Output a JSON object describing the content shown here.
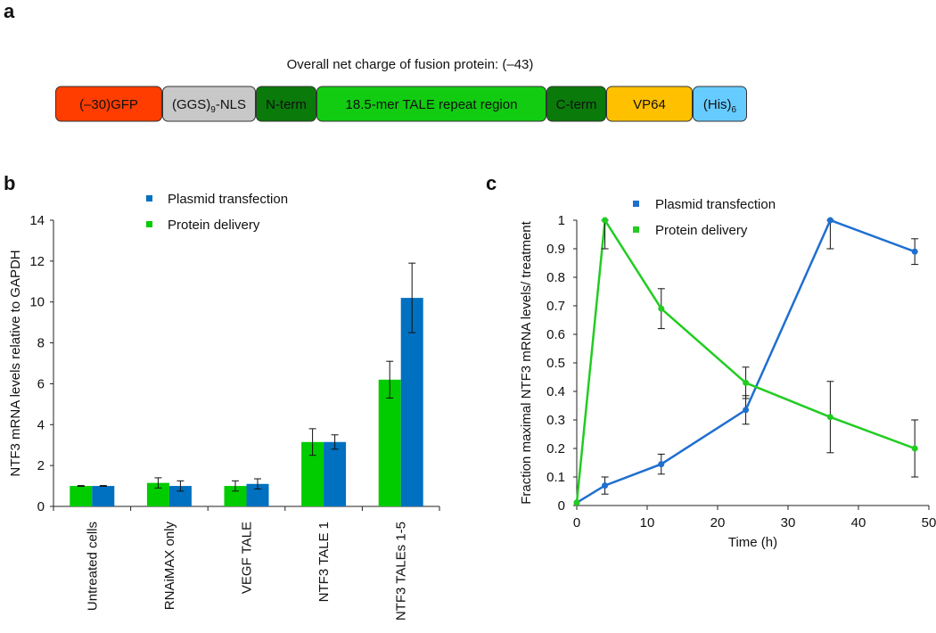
{
  "panel_labels": {
    "a": "a",
    "b": "b",
    "c": "c"
  },
  "diagram": {
    "title": "Overall net charge of fusion protein:  (–43)",
    "segments": [
      {
        "label": "(–30)GFP",
        "sub": "",
        "color": "#ff3d00"
      },
      {
        "label": "(GGS)",
        "sub": "9",
        "suffix": "-NLS",
        "color": "#c8c8c8"
      },
      {
        "label": "N-term",
        "sub": "",
        "color": "#0a7a0a"
      },
      {
        "label": "18.5-mer TALE repeat region",
        "sub": "",
        "color": "#11cc11"
      },
      {
        "label": "C-term",
        "sub": "",
        "color": "#0a7a0a"
      },
      {
        "label": "VP64",
        "sub": "",
        "color": "#ffc000"
      },
      {
        "label": "(His)",
        "sub": "6",
        "color": "#66ccff"
      }
    ]
  },
  "chart_data": [
    {
      "type": "bar",
      "title": "",
      "xlabel": "",
      "ylabel": "NTF3 mRNA levels relative to GAPDH",
      "ylim": [
        0,
        14
      ],
      "yticks": [
        "0",
        "2",
        "4",
        "6",
        "8",
        "10",
        "12",
        "14"
      ],
      "categories": [
        "Untreated cells",
        "RNAiMAX only",
        "VEGF TALE",
        "NTF3 TALE 1",
        "NTF3 TALEs 1-5"
      ],
      "legend": "top-center",
      "series": [
        {
          "name": "Protein delivery",
          "color": "#00cc00",
          "values": [
            1.0,
            1.15,
            1.0,
            3.15,
            6.2
          ],
          "errors": [
            0.02,
            0.25,
            0.25,
            0.65,
            0.9
          ]
        },
        {
          "name": "Plasmid transfection",
          "color": "#0070c0",
          "values": [
            1.0,
            1.0,
            1.1,
            3.15,
            10.2
          ],
          "errors": [
            0.02,
            0.25,
            0.25,
            0.35,
            1.7
          ]
        }
      ],
      "legend_order": [
        "Plasmid transfection",
        "Protein delivery"
      ]
    },
    {
      "type": "line",
      "title": "",
      "xlabel": "Time (h)",
      "ylabel": "Fraction maximal NTF3 mRNA levels/ treatment",
      "xlim": [
        0,
        50
      ],
      "ylim": [
        0,
        1
      ],
      "xticks": [
        "0",
        "10",
        "20",
        "30",
        "40",
        "50"
      ],
      "yticks": [
        "0",
        "0.1",
        "0.2",
        "0.3",
        "0.4",
        "0.5",
        "0.6",
        "0.7",
        "0.8",
        "0.9",
        "1"
      ],
      "x": [
        0,
        4,
        12,
        24,
        36,
        48
      ],
      "legend": "top-center",
      "series": [
        {
          "name": "Plasmid transfection",
          "color": "#1f6fd0",
          "values": [
            0.01,
            0.07,
            0.145,
            0.335,
            1.0,
            0.89
          ],
          "errors": [
            0,
            0.03,
            0.035,
            0.05,
            0.1,
            0.045
          ]
        },
        {
          "name": "Protein delivery",
          "color": "#22cc22",
          "values": [
            0.01,
            1.0,
            0.69,
            0.43,
            0.31,
            0.2
          ],
          "errors": [
            0,
            0.1,
            0.07,
            0.055,
            0.125,
            0.1
          ]
        }
      ]
    }
  ]
}
